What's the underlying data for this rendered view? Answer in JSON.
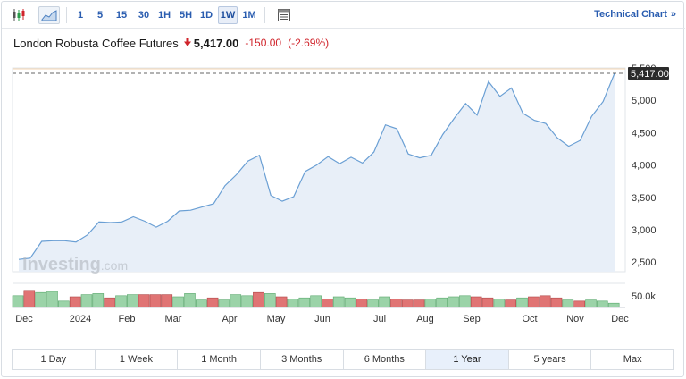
{
  "toolbar": {
    "candles_icon": "candlestick-icon",
    "area_icon": "area-chart-icon",
    "intervals": [
      "1",
      "5",
      "15",
      "30",
      "1H",
      "5H",
      "1D",
      "1W",
      "1M"
    ],
    "active_interval": "1W",
    "indicators_icon": "indicators-icon",
    "technical_chart_label": "Technical Chart",
    "technical_chart_chevron": "»"
  },
  "header": {
    "name": "London Robusta Coffee Futures",
    "direction_icon": "down-arrow-icon",
    "price": "5,417.00",
    "change": "-150.00",
    "change_pct": "(-2.69%)",
    "down_color": "#d0242b"
  },
  "watermark": {
    "brand": "Investing",
    "suffix": ".com"
  },
  "periods": [
    "1 Day",
    "1 Week",
    "1 Month",
    "3 Months",
    "6 Months",
    "1 Year",
    "5 years",
    "Max"
  ],
  "active_period": "1 Year",
  "chart_data": {
    "type": "area",
    "x_labels": [
      "Dec",
      "2024",
      "Feb",
      "Mar",
      "Apr",
      "May",
      "Jun",
      "Jul",
      "Aug",
      "Sep",
      "Oct",
      "Nov",
      "Dec"
    ],
    "y_ticks": [
      "2,500",
      "3,000",
      "3,500",
      "4,000",
      "4,500",
      "5,000",
      "5,500"
    ],
    "ylim": [
      2350,
      5500
    ],
    "last_price_label": "5,417.00",
    "last_price": 5417,
    "volume_tick": "50.0k",
    "line_color": "#6a9fd4",
    "fill_color": "#e8eff8",
    "series": [
      {
        "values": [
          2540,
          2560,
          2820,
          2830,
          2830,
          2810,
          2920,
          3120,
          3110,
          3120,
          3200,
          3130,
          3040,
          3130,
          3290,
          3300,
          3350,
          3400,
          3680,
          3850,
          4060,
          4150,
          3530,
          3440,
          3510,
          3900,
          4000,
          4130,
          4020,
          4120,
          4030,
          4200,
          4620,
          4560,
          4170,
          4110,
          4150,
          4470,
          4720,
          4950,
          4770,
          5290,
          5060,
          5190,
          4800,
          4690,
          4640,
          4420,
          4290,
          4380,
          4750,
          4980,
          5417
        ]
      }
    ],
    "volume": {
      "values": [
        0.55,
        0.8,
        0.7,
        0.75,
        0.3,
        0.5,
        0.6,
        0.65,
        0.45,
        0.55,
        0.6,
        0.6,
        0.6,
        0.6,
        0.5,
        0.65,
        0.35,
        0.45,
        0.35,
        0.6,
        0.55,
        0.7,
        0.65,
        0.5,
        0.4,
        0.45,
        0.55,
        0.4,
        0.5,
        0.45,
        0.4,
        0.35,
        0.5,
        0.4,
        0.35,
        0.35,
        0.4,
        0.45,
        0.5,
        0.55,
        0.5,
        0.45,
        0.4,
        0.35,
        0.45,
        0.5,
        0.55,
        0.45,
        0.35,
        0.3,
        0.35,
        0.3,
        0.2
      ],
      "up": [
        1,
        0,
        1,
        1,
        1,
        0,
        1,
        1,
        0,
        1,
        1,
        0,
        0,
        0,
        1,
        1,
        1,
        0,
        1,
        1,
        1,
        0,
        1,
        0,
        1,
        1,
        1,
        0,
        1,
        1,
        0,
        1,
        1,
        0,
        0,
        0,
        1,
        1,
        1,
        1,
        0,
        0,
        1,
        0,
        1,
        0,
        0,
        0,
        1,
        0,
        1,
        1,
        1
      ],
      "up_color": "#9bd3a8",
      "down_color": "#e07474"
    }
  }
}
